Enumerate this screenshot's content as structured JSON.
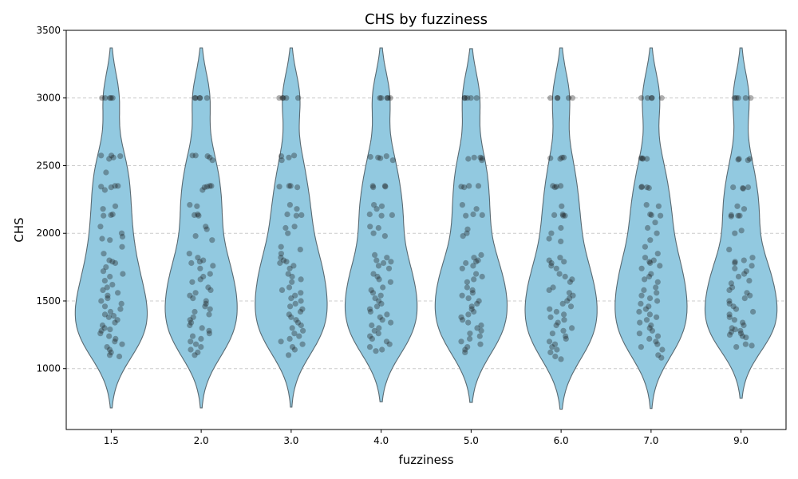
{
  "chart_data": {
    "type": "violin",
    "title": "CHS by fuzziness",
    "xlabel": "fuzziness",
    "ylabel": "CHS",
    "categories": [
      "1.5",
      "2.0",
      "3.0",
      "4.0",
      "5.0",
      "6.0",
      "7.0",
      "9.0"
    ],
    "yticks": [
      1000,
      1500,
      2000,
      2500,
      3000,
      3500
    ],
    "ylim": [
      550,
      3500
    ],
    "grid": "y-dashed",
    "colors": {
      "violin_fill": "#92c9e0",
      "violin_edge": "#5a6a72",
      "point": "#1a1a1a",
      "grid": "#cccccc"
    },
    "violin_range": [
      {
        "category": "1.5",
        "min": 710,
        "max": 3370
      },
      {
        "category": "2.0",
        "min": 710,
        "max": 3370
      },
      {
        "category": "3.0",
        "min": 715,
        "max": 3370
      },
      {
        "category": "4.0",
        "min": 755,
        "max": 3370
      },
      {
        "category": "5.0",
        "min": 750,
        "max": 3365
      },
      {
        "category": "6.0",
        "min": 700,
        "max": 3370
      },
      {
        "category": "7.0",
        "min": 705,
        "max": 3370
      },
      {
        "category": "9.0",
        "min": 780,
        "max": 3370
      }
    ],
    "points": [
      {
        "category": "1.5",
        "values": [
          3000,
          3000,
          3000,
          3000,
          3000,
          2575,
          2575,
          2570,
          2560,
          2550,
          2450,
          2350,
          2350,
          2345,
          2340,
          2320,
          2200,
          2180,
          2140,
          2135,
          2130,
          2050,
          2000,
          1975,
          1960,
          1950,
          1900,
          1850,
          1800,
          1790,
          1780,
          1750,
          1720,
          1700,
          1680,
          1650,
          1620,
          1600,
          1580,
          1560,
          1540,
          1520,
          1500,
          1480,
          1460,
          1440,
          1420,
          1400,
          1390,
          1380,
          1360,
          1340,
          1320,
          1300,
          1290,
          1280,
          1260,
          1240,
          1220,
          1200,
          1180,
          1160,
          1140,
          1120,
          1100,
          1090
        ]
      },
      {
        "category": "2.0",
        "values": [
          3000,
          3000,
          3000,
          3000,
          3000,
          2575,
          2575,
          2570,
          2560,
          2540,
          2350,
          2350,
          2345,
          2340,
          2320,
          2210,
          2200,
          2140,
          2135,
          2130,
          2050,
          2030,
          1980,
          1950,
          1850,
          1820,
          1800,
          1790,
          1780,
          1760,
          1740,
          1700,
          1680,
          1660,
          1640,
          1600,
          1580,
          1560,
          1540,
          1520,
          1500,
          1480,
          1460,
          1440,
          1420,
          1400,
          1380,
          1360,
          1340,
          1320,
          1300,
          1280,
          1260,
          1240,
          1220,
          1200,
          1180,
          1160,
          1140,
          1120,
          1100
        ]
      },
      {
        "category": "3.0",
        "values": [
          3000,
          3000,
          3000,
          3000,
          3000,
          2575,
          2570,
          2560,
          2540,
          2350,
          2350,
          2345,
          2340,
          2210,
          2180,
          2140,
          2135,
          2130,
          2050,
          2040,
          2000,
          1900,
          1880,
          1850,
          1820,
          1800,
          1790,
          1780,
          1760,
          1740,
          1700,
          1680,
          1660,
          1640,
          1600,
          1580,
          1560,
          1540,
          1520,
          1500,
          1480,
          1460,
          1440,
          1420,
          1400,
          1380,
          1360,
          1340,
          1320,
          1300,
          1280,
          1260,
          1240,
          1220,
          1200,
          1180,
          1160,
          1140,
          1100
        ]
      },
      {
        "category": "4.0",
        "values": [
          3000,
          3000,
          3000,
          3000,
          3000,
          2570,
          2565,
          2560,
          2555,
          2540,
          2350,
          2350,
          2345,
          2340,
          2210,
          2200,
          2180,
          2140,
          2135,
          2130,
          2050,
          2040,
          2000,
          1980,
          1840,
          1820,
          1800,
          1790,
          1780,
          1760,
          1740,
          1700,
          1680,
          1660,
          1640,
          1600,
          1580,
          1560,
          1540,
          1520,
          1500,
          1480,
          1460,
          1440,
          1420,
          1400,
          1380,
          1360,
          1340,
          1320,
          1300,
          1280,
          1260,
          1240,
          1220,
          1200,
          1180,
          1160,
          1140,
          1130
        ]
      },
      {
        "category": "5.0",
        "values": [
          3000,
          3000,
          3000,
          3000,
          3000,
          2560,
          2560,
          2555,
          2550,
          2540,
          2350,
          2350,
          2345,
          2340,
          2210,
          2180,
          2140,
          2135,
          2130,
          2030,
          2000,
          1980,
          1840,
          1820,
          1800,
          1790,
          1780,
          1760,
          1740,
          1700,
          1680,
          1660,
          1640,
          1600,
          1580,
          1560,
          1540,
          1520,
          1500,
          1480,
          1460,
          1440,
          1420,
          1400,
          1380,
          1360,
          1340,
          1320,
          1300,
          1280,
          1260,
          1240,
          1220,
          1200,
          1180,
          1160,
          1140,
          1120
        ]
      },
      {
        "category": "6.0",
        "values": [
          3000,
          3000,
          3000,
          3000,
          3000,
          2560,
          2560,
          2555,
          2550,
          2350,
          2350,
          2345,
          2340,
          2200,
          2140,
          2135,
          2130,
          2130,
          2040,
          2000,
          1960,
          1940,
          1820,
          1800,
          1790,
          1780,
          1760,
          1740,
          1700,
          1680,
          1660,
          1640,
          1600,
          1580,
          1560,
          1540,
          1520,
          1500,
          1480,
          1460,
          1440,
          1420,
          1400,
          1380,
          1360,
          1340,
          1320,
          1300,
          1280,
          1260,
          1240,
          1220,
          1200,
          1180,
          1160,
          1140,
          1120,
          1090,
          1070
        ]
      },
      {
        "category": "7.0",
        "values": [
          3000,
          3000,
          3000,
          3000,
          3000,
          2555,
          2555,
          2550,
          2550,
          2345,
          2340,
          2340,
          2335,
          2210,
          2200,
          2140,
          2135,
          2130,
          2080,
          2040,
          2000,
          1950,
          1900,
          1850,
          1820,
          1800,
          1790,
          1780,
          1760,
          1740,
          1700,
          1680,
          1660,
          1640,
          1600,
          1580,
          1560,
          1540,
          1520,
          1500,
          1480,
          1460,
          1440,
          1420,
          1400,
          1380,
          1360,
          1340,
          1320,
          1300,
          1280,
          1260,
          1240,
          1220,
          1200,
          1180,
          1160,
          1140,
          1100,
          1080
        ]
      },
      {
        "category": "9.0",
        "values": [
          3000,
          3000,
          3000,
          3000,
          3000,
          2550,
          2550,
          2545,
          2540,
          2340,
          2340,
          2335,
          2330,
          2200,
          2180,
          2135,
          2130,
          2130,
          2125,
          2020,
          2000,
          1880,
          1820,
          1800,
          1790,
          1780,
          1760,
          1740,
          1720,
          1700,
          1680,
          1650,
          1630,
          1600,
          1580,
          1560,
          1540,
          1520,
          1500,
          1480,
          1460,
          1440,
          1420,
          1400,
          1380,
          1360,
          1340,
          1320,
          1300,
          1290,
          1280,
          1270,
          1260,
          1250,
          1240,
          1230,
          1180,
          1170,
          1160
        ]
      }
    ]
  }
}
